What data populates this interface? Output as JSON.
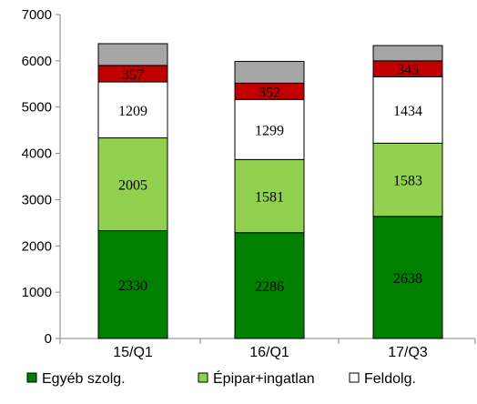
{
  "chart_data": {
    "type": "bar",
    "stacked": true,
    "categories": [
      "15/Q1",
      "16/Q1",
      "17/Q3"
    ],
    "ylim": [
      0,
      7000
    ],
    "yticks": [
      0,
      1000,
      2000,
      3000,
      4000,
      5000,
      6000,
      7000
    ],
    "grid": false,
    "legend_position": "bottom",
    "series": [
      {
        "name": "Egyéb szolg.",
        "color": "#008000",
        "values": [
          2330,
          2286,
          2638
        ],
        "labels": [
          "2330",
          "2286",
          "2638"
        ]
      },
      {
        "name": "Épipar+ingatlan",
        "color": "#92D050",
        "values": [
          2005,
          1581,
          1583
        ],
        "labels": [
          "2005",
          "1581",
          "1583"
        ]
      },
      {
        "name": "Feldolg.",
        "color": "#FFFFFF",
        "values": [
          1209,
          1299,
          1434
        ],
        "labels": [
          "1209",
          "1299",
          "1434"
        ]
      },
      {
        "name": "",
        "color": "#C00000",
        "values": [
          357,
          352,
          345
        ],
        "labels": [
          "357",
          "352",
          "345"
        ]
      },
      {
        "name": "",
        "color": "#A6A6A6",
        "values": [
          470,
          470,
          330
        ],
        "labels": [
          "",
          "",
          ""
        ]
      }
    ]
  }
}
